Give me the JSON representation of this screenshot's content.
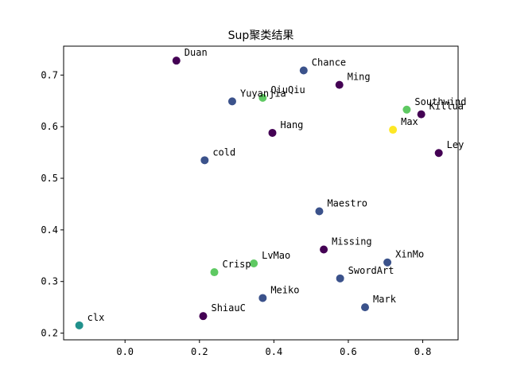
{
  "chart_data": {
    "type": "scatter",
    "title": "Sup聚类结果",
    "xlabel": "",
    "ylabel": "",
    "xlim": [
      -0.165,
      0.895
    ],
    "ylim": [
      0.187,
      0.756
    ],
    "xticks": [
      0.0,
      0.2,
      0.4,
      0.6,
      0.8
    ],
    "xtick_labels": [
      "0.0",
      "0.2",
      "0.4",
      "0.6",
      "0.8"
    ],
    "yticks": [
      0.2,
      0.3,
      0.4,
      0.5,
      0.6,
      0.7
    ],
    "ytick_labels": [
      "0.2",
      "0.3",
      "0.4",
      "0.5",
      "0.6",
      "0.7"
    ],
    "grid": false,
    "legend": "none",
    "colors": {
      "dark_purple": "#440154",
      "blue": "#3b528b",
      "teal": "#21918c",
      "green": "#5ec962",
      "yellow": "#fde725"
    },
    "points": [
      {
        "label": "Duan",
        "x": 0.138,
        "y": 0.728,
        "color": "#440154"
      },
      {
        "label": "Chance",
        "x": 0.48,
        "y": 0.709,
        "color": "#3b528b"
      },
      {
        "label": "Ming",
        "x": 0.576,
        "y": 0.681,
        "color": "#440154"
      },
      {
        "label": "Yuyanjia",
        "x": 0.288,
        "y": 0.649,
        "color": "#3b528b"
      },
      {
        "label": "QiuQiu",
        "x": 0.37,
        "y": 0.656,
        "color": "#5ec962"
      },
      {
        "label": "Southwind",
        "x": 0.757,
        "y": 0.633,
        "color": "#5ec962"
      },
      {
        "label": "Killua",
        "x": 0.796,
        "y": 0.624,
        "color": "#440154"
      },
      {
        "label": "Max",
        "x": 0.72,
        "y": 0.594,
        "color": "#fde725"
      },
      {
        "label": "Hang",
        "x": 0.396,
        "y": 0.588,
        "color": "#440154"
      },
      {
        "label": "Ley",
        "x": 0.843,
        "y": 0.549,
        "color": "#440154"
      },
      {
        "label": "cold",
        "x": 0.214,
        "y": 0.535,
        "color": "#3b528b"
      },
      {
        "label": "Maestro",
        "x": 0.522,
        "y": 0.436,
        "color": "#3b528b"
      },
      {
        "label": "Missing",
        "x": 0.534,
        "y": 0.362,
        "color": "#440154"
      },
      {
        "label": "XinMo",
        "x": 0.705,
        "y": 0.337,
        "color": "#3b528b"
      },
      {
        "label": "LvMao",
        "x": 0.346,
        "y": 0.335,
        "color": "#5ec962"
      },
      {
        "label": "Crisp",
        "x": 0.24,
        "y": 0.318,
        "color": "#5ec962"
      },
      {
        "label": "SwordArt",
        "x": 0.578,
        "y": 0.306,
        "color": "#3b528b"
      },
      {
        "label": "Meiko",
        "x": 0.37,
        "y": 0.268,
        "color": "#3b528b"
      },
      {
        "label": "Mark",
        "x": 0.645,
        "y": 0.25,
        "color": "#3b528b"
      },
      {
        "label": "ShiauC",
        "x": 0.21,
        "y": 0.233,
        "color": "#440154"
      },
      {
        "label": "clx",
        "x": -0.123,
        "y": 0.215,
        "color": "#21918c"
      }
    ]
  }
}
